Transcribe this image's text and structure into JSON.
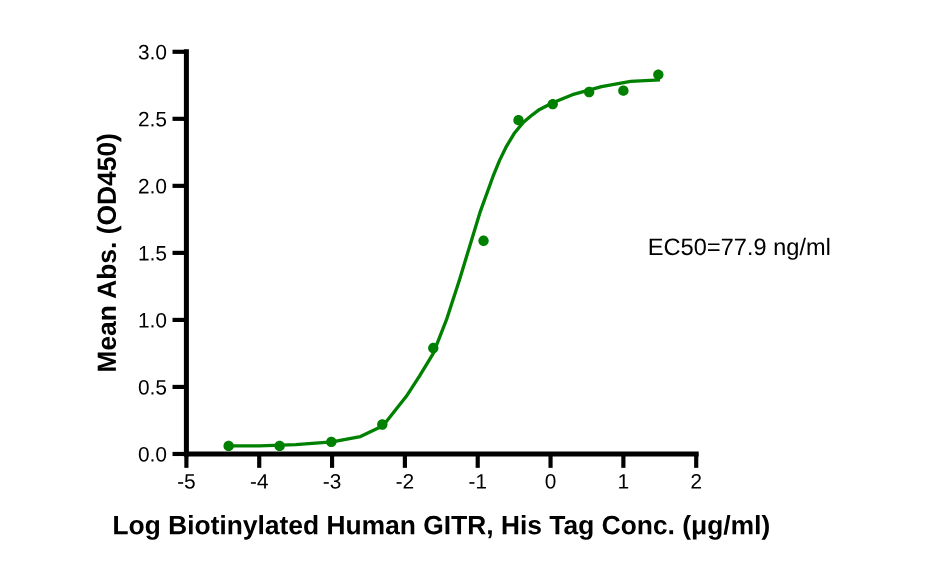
{
  "chart_data": {
    "type": "scatter",
    "xlabel": "Log Biotinylated Human GITR, His Tag Conc. (μg/ml)",
    "ylabel": "Mean Abs. (OD450)",
    "annotations": [
      "EC50=77.9 ng/ml"
    ],
    "series": [
      {
        "color": "#008000",
        "marker": "circle",
        "x": [
          -4.42,
          -3.72,
          -3.01,
          -2.31,
          -1.61,
          -0.92,
          -0.44,
          0.03,
          0.53,
          1.0,
          1.48
        ],
        "values": [
          0.06,
          0.06,
          0.09,
          0.22,
          0.79,
          1.59,
          2.49,
          2.61,
          2.7,
          2.71,
          2.83
        ]
      },
      {
        "type": "line",
        "color": "#008000",
        "line_style": "solid",
        "x": [
          -4.42,
          -4.0,
          -3.5,
          -3.0,
          -2.61,
          -2.3,
          -1.98,
          -1.8,
          -1.61,
          -1.43,
          -1.25,
          -1.11,
          -0.97,
          -0.79,
          -0.7,
          -0.61,
          -0.5,
          -0.38,
          -0.25,
          -0.15,
          0.03,
          0.3,
          0.7,
          1.1,
          1.48
        ],
        "values": [
          0.06,
          0.06,
          0.07,
          0.09,
          0.13,
          0.21,
          0.43,
          0.58,
          0.75,
          1.0,
          1.3,
          1.55,
          1.8,
          2.07,
          2.19,
          2.29,
          2.39,
          2.47,
          2.53,
          2.57,
          2.62,
          2.68,
          2.74,
          2.78,
          2.79
        ]
      }
    ],
    "xlim": [
      -5,
      2
    ],
    "xticks": [
      -5,
      -4,
      -3,
      -2,
      -1,
      0,
      1,
      2
    ],
    "ylim": [
      0,
      3
    ],
    "yticks": [
      {
        "value": 0,
        "label": "0.0"
      },
      {
        "value": 0.5,
        "label": "0.5"
      },
      {
        "value": 1,
        "label": "1.0"
      },
      {
        "value": 1.5,
        "label": "1.5"
      },
      {
        "value": 2,
        "label": "2.0"
      },
      {
        "value": 2.5,
        "label": "2.5"
      },
      {
        "value": 3,
        "label": "3.0"
      }
    ]
  }
}
